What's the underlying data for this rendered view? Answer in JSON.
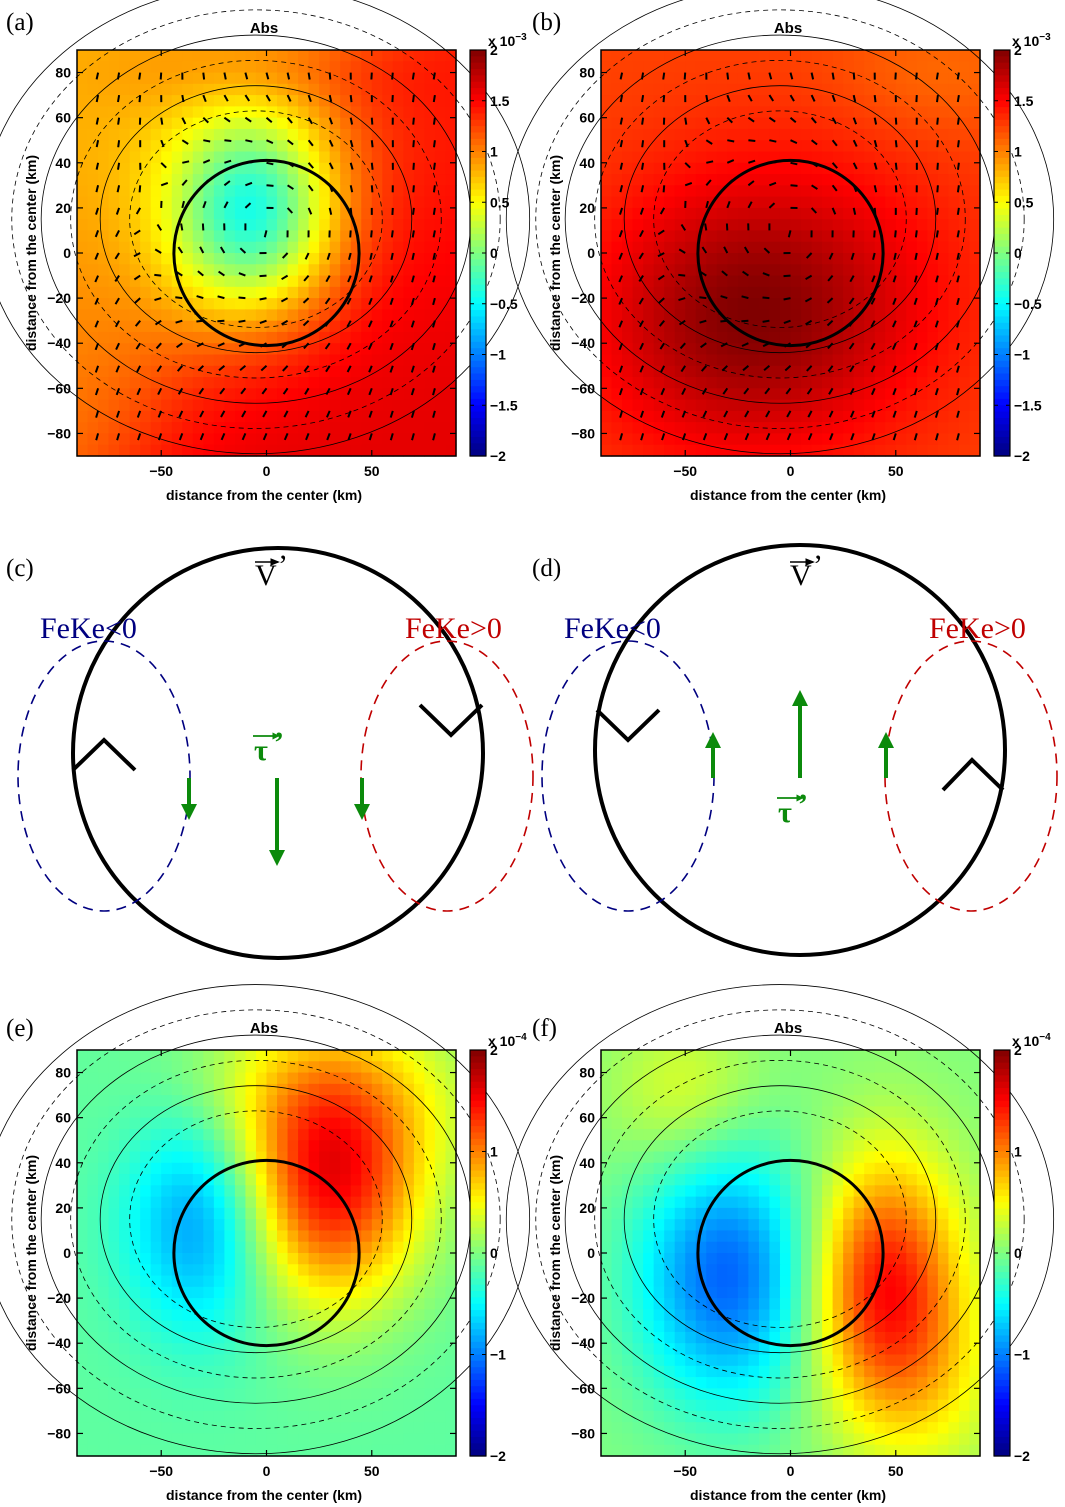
{
  "panel_labels": {
    "a": "(a)",
    "b": "(b)",
    "c": "(c)",
    "d": "(d)",
    "e": "(e)",
    "f": "(f)"
  },
  "titles": {
    "a": "Abs",
    "b": "Abs",
    "e": "Abs",
    "f": "Abs"
  },
  "axis_labels": {
    "x": "distance from the center (km)",
    "y": "distance from the center (km)"
  },
  "colorbar_scale": {
    "top": "x 10",
    "exp_top": "−3",
    "bottom": "x 10",
    "exp_bottom": "−4"
  },
  "schematic": {
    "vector_v": "V",
    "vector_tau": "τ",
    "prime": "’",
    "left_label": "FeKe<0",
    "right_label": "FeKe>0"
  },
  "colors": {
    "ring": "#000000",
    "negative_ellipse": "#000080",
    "positive_ellipse": "#c00000",
    "tau_arrow": "#0b8a0b",
    "label_blue": "#000080",
    "label_red": "#c00000"
  },
  "chart_data": [
    {
      "panel": "a",
      "type": "heatmap",
      "title": "Abs",
      "xlabel": "distance from the center (km)",
      "ylabel": "distance from the center (km)",
      "xlim": [
        -90,
        90
      ],
      "ylim": [
        -90,
        90
      ],
      "xticks": [
        -50,
        0,
        50
      ],
      "yticks": [
        -80,
        -60,
        -40,
        -20,
        0,
        20,
        40,
        60,
        80
      ],
      "colorbar_ticks": [
        -2,
        -1.5,
        -1,
        -0.5,
        0,
        0.5,
        1,
        1.5,
        2
      ],
      "colorbar_labels": [
        "−2",
        "−1.5",
        "−1",
        "−0.5",
        "0",
        "0.5",
        "1",
        "1.5",
        "2"
      ],
      "colorbar_scale": "x 10^-3",
      "circle_radius_km": 44,
      "quiver": true,
      "min_value_approx": -0.4,
      "max_value_approx": 1.6
    },
    {
      "panel": "b",
      "type": "heatmap",
      "title": "Abs",
      "xlabel": "distance from the center (km)",
      "ylabel": "distance from the center (km)",
      "xlim": [
        -90,
        90
      ],
      "ylim": [
        -90,
        90
      ],
      "xticks": [
        -50,
        0,
        50
      ],
      "yticks": [
        -80,
        -60,
        -40,
        -20,
        0,
        20,
        40,
        60,
        80
      ],
      "colorbar_ticks": [
        -2,
        -1.5,
        -1,
        -0.5,
        0,
        0.5,
        1,
        1.5,
        2
      ],
      "colorbar_labels": [
        "−2",
        "−1.5",
        "−1",
        "−0.5",
        "0",
        "0.5",
        "1",
        "1.5",
        "2"
      ],
      "colorbar_scale": "x 10^-3",
      "circle_radius_km": 44,
      "quiver": true,
      "min_value_approx": 1.1,
      "max_value_approx": 2.0
    },
    {
      "panel": "e",
      "type": "heatmap",
      "title": "Abs",
      "xlabel": "distance from the center (km)",
      "ylabel": "distance from the center (km)",
      "xlim": [
        -90,
        90
      ],
      "ylim": [
        -90,
        90
      ],
      "xticks": [
        -50,
        0,
        50
      ],
      "yticks": [
        -80,
        -60,
        -40,
        -20,
        0,
        20,
        40,
        60,
        80
      ],
      "colorbar_ticks": [
        -2,
        -1,
        0,
        1,
        2
      ],
      "colorbar_labels": [
        "−2",
        "−1",
        "0",
        "1",
        "2"
      ],
      "colorbar_scale": "x 10^-4",
      "circle_radius_km": 44,
      "quiver": false,
      "min_value_approx": -0.8,
      "max_value_approx": 1.6
    },
    {
      "panel": "f",
      "type": "heatmap",
      "title": "Abs",
      "xlabel": "distance from the center (km)",
      "ylabel": "distance from the center (km)",
      "xlim": [
        -90,
        90
      ],
      "ylim": [
        -90,
        90
      ],
      "xticks": [
        -50,
        0,
        50
      ],
      "yticks": [
        -80,
        -60,
        -40,
        -20,
        0,
        20,
        40,
        60,
        80
      ],
      "colorbar_ticks": [
        -2,
        -1,
        0,
        1,
        2
      ],
      "colorbar_labels": [
        "−2",
        "−1",
        "0",
        "1",
        "2"
      ],
      "colorbar_scale": "x 10^-4",
      "circle_radius_km": 44,
      "quiver": false,
      "min_value_approx": -1.1,
      "max_value_approx": 1.5
    }
  ]
}
